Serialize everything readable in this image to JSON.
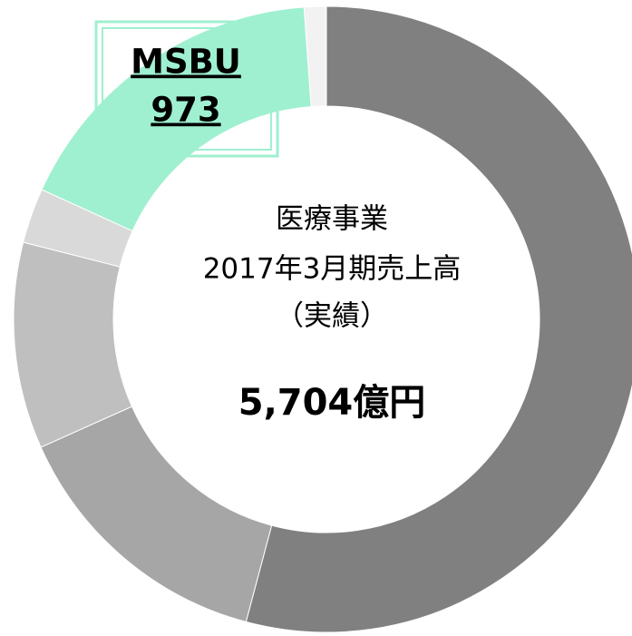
{
  "chart_data": {
    "type": "donut",
    "center_lines": [
      "医療事業",
      "2017年3月期売上高",
      "（実績）"
    ],
    "total_label": "5,704億円",
    "categories": [
      null,
      null,
      null,
      null,
      "MSBU",
      null
    ],
    "values": [
      3088,
      808,
      608,
      162,
      973,
      65
    ],
    "colors": [
      "#808080",
      "#a6a6a6",
      "#bfbfbf",
      "#d9d9d9",
      "#9ff0d0",
      "#f2f2f2"
    ]
  }
}
